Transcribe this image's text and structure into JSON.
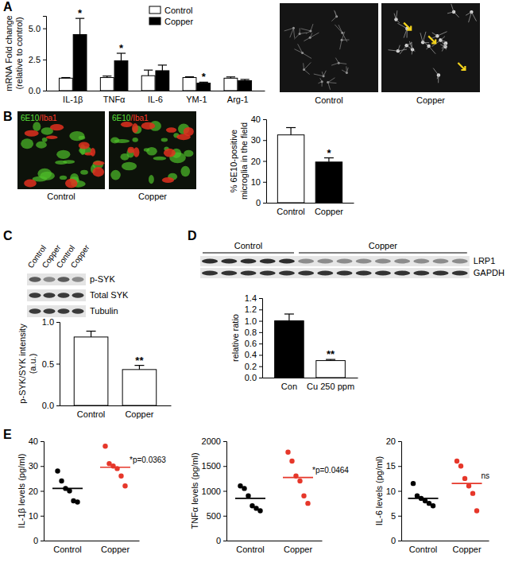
{
  "chart_data": [
    {
      "type": "bar",
      "ylabel": [
        "mRNA Fold change",
        "(relative to control)"
      ],
      "categories": [
        "IL-1β",
        "TNFα",
        "IL-6",
        "YM-1",
        "Arg-1"
      ],
      "series": [
        {
          "name": "Control",
          "color": "#ffffff",
          "values": [
            1.0,
            1.05,
            1.2,
            1.05,
            1.0
          ],
          "errors": [
            0.05,
            0.12,
            0.45,
            0.06,
            0.1
          ]
        },
        {
          "name": "Copper",
          "color": "#000000",
          "values": [
            4.5,
            2.4,
            1.6,
            0.6,
            0.8
          ],
          "errors": [
            1.3,
            0.6,
            0.45,
            0.08,
            0.1
          ],
          "significance": [
            "*",
            "*",
            null,
            "*",
            null
          ]
        }
      ],
      "ylim": [
        0,
        6
      ],
      "yticks": [
        {
          "value": 0,
          "label": "0.0"
        },
        {
          "value": 2.5,
          "label": "2.5"
        },
        {
          "value": 5,
          "label": "5.0"
        }
      ],
      "legend": "top-right"
    },
    {
      "type": "bar",
      "ylabel": [
        "% 6E10-positive",
        "microglia in the field"
      ],
      "categories": [
        "Control",
        "Copper"
      ],
      "values": [
        32.5,
        19.5
      ],
      "errors": [
        3.5,
        2
      ],
      "colors": [
        "#ffffff",
        "#000000"
      ],
      "significance": [
        null,
        "*"
      ],
      "ylim": [
        0,
        40
      ],
      "yticks": [
        0,
        10,
        20,
        30,
        40
      ]
    },
    {
      "type": "bar",
      "ylabel": [
        "p-SYK/SYK intensity",
        "(a.u.)"
      ],
      "categories": [
        "Control",
        "Copper"
      ],
      "values": [
        0.82,
        0.43
      ],
      "errors": [
        0.07,
        0.05
      ],
      "colors": [
        "#ffffff",
        "#ffffff"
      ],
      "significance": [
        null,
        "**"
      ],
      "ylim": [
        0,
        1
      ],
      "yticks": [
        {
          "value": 0,
          "label": "0.0"
        },
        {
          "value": 0.5,
          "label": "0.5"
        },
        {
          "value": 1,
          "label": "1.0"
        }
      ]
    },
    {
      "type": "bar",
      "ylabel": "relative ratio",
      "categories": [
        "Con",
        "Cu 250 ppm"
      ],
      "values": [
        1.0,
        0.3
      ],
      "errors": [
        0.12,
        0.02
      ],
      "colors": [
        "#000000",
        "#ffffff"
      ],
      "significance": [
        null,
        "**"
      ],
      "ylim": [
        0,
        1.4
      ],
      "yticks": [
        {
          "value": 0,
          "label": "0.0"
        },
        {
          "value": 0.2,
          "label": "0.2"
        },
        {
          "value": 0.4,
          "label": "0.4"
        },
        {
          "value": 0.6,
          "label": "0.6"
        },
        {
          "value": 0.8,
          "label": "0.8"
        },
        {
          "value": 1,
          "label": "1.0"
        },
        {
          "value": 1.2,
          "label": "1.2"
        },
        {
          "value": 1.4,
          "label": "1.4"
        }
      ]
    },
    {
      "type": "dot",
      "ylabel": "IL-1β levels (pg/ml)",
      "categories": [
        "Control",
        "Copper"
      ],
      "values": [
        [
          28,
          24,
          21,
          20,
          16,
          15.5
        ],
        [
          38,
          31,
          30,
          29,
          26,
          22
        ]
      ],
      "means": [
        21,
        29.5
      ],
      "colors": [
        "#000000",
        "#e6372a"
      ],
      "annotation": "*p=0.0363",
      "ylim": [
        0,
        40
      ],
      "yticks": [
        0,
        10,
        20,
        30,
        40
      ]
    },
    {
      "type": "dot",
      "ylabel": "TNFα levels (pg/ml)",
      "categories": [
        "Control",
        "Copper"
      ],
      "values": [
        [
          1100,
          1050,
          900,
          700,
          650,
          600
        ],
        [
          1780,
          1600,
          1300,
          1200,
          900,
          750
        ]
      ],
      "means": [
        850,
        1270
      ],
      "colors": [
        "#000000",
        "#e6372a"
      ],
      "annotation": "*p=0.0464",
      "ylim": [
        0,
        2000
      ],
      "yticks": [
        0,
        500,
        1000,
        1500,
        2000
      ]
    },
    {
      "type": "dot",
      "ylabel": "IL-6 levels (pg/ml)",
      "categories": [
        "Control",
        "Copper"
      ],
      "values": [
        [
          11.5,
          9,
          8.5,
          8,
          7.5,
          7
        ],
        [
          16,
          15,
          12.5,
          11,
          9.5,
          6
        ]
      ],
      "means": [
        8.5,
        11.5
      ],
      "colors": [
        "#000000",
        "#e6372a"
      ],
      "annotation": "ns",
      "ylim": [
        0,
        20
      ],
      "yticks": [
        0,
        5,
        10,
        15,
        20
      ]
    }
  ],
  "figure": {
    "panel_labels": [
      "A",
      "B",
      "C",
      "D",
      "E"
    ],
    "panel_a_images": [
      "Control",
      "Copper"
    ],
    "panel_b_images": {
      "labels": [
        "Control",
        "Copper"
      ],
      "stain": [
        "6E10",
        "/Iba1"
      ]
    },
    "panel_c_blot": {
      "lanes": [
        "Control",
        "Copper",
        "Control",
        "Copper"
      ],
      "bands": [
        "p-SYK",
        "Total SYK",
        "Tubulin"
      ]
    },
    "panel_d_blot": {
      "groups": [
        "Control",
        "Copper"
      ],
      "bands": [
        "LRP1",
        "GAPDH"
      ]
    }
  }
}
